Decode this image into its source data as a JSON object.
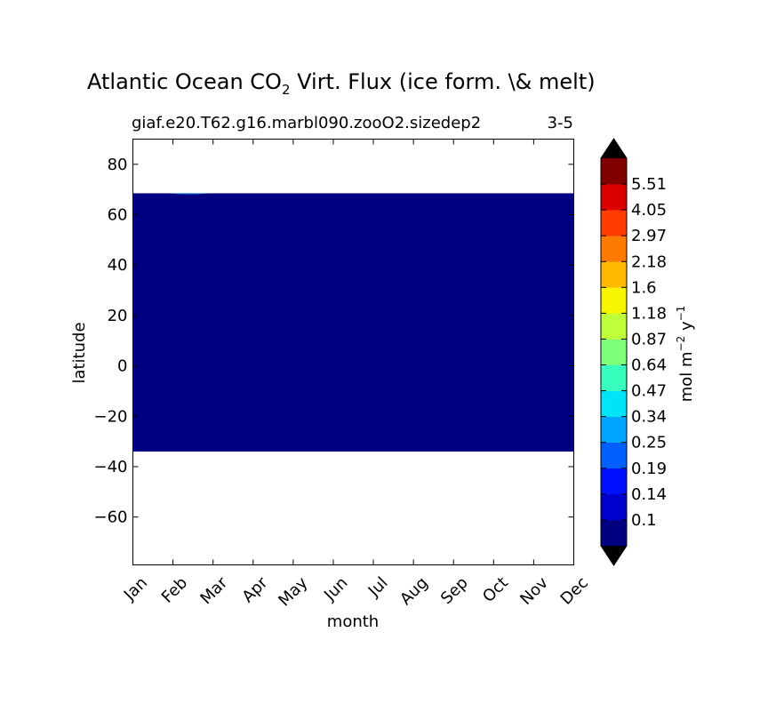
{
  "title": "Atlantic Ocean CO",
  "title_sub": "2",
  "title_rest": " Virt. Flux (ice form. \\& melt)",
  "subtitle_left": "giaf.e20.T62.g16.marbl090.zooO2.sizedep2",
  "subtitle_right": "3-5",
  "colorbar_label": {
    "base": "mol m",
    "exp1": "−2",
    "mid": " y",
    "exp2": "−1"
  },
  "chart_data": {
    "type": "heatmap",
    "title": "Atlantic Ocean CO2 Virt. Flux (ice form. \\& melt)",
    "xlabel": "month",
    "ylabel": "latitude",
    "x_categories": [
      "Jan",
      "Feb",
      "Mar",
      "Apr",
      "May",
      "Jun",
      "Jul",
      "Aug",
      "Sep",
      "Oct",
      "Nov",
      "Dec"
    ],
    "ylim": [
      -79,
      90
    ],
    "y_ticks": [
      80,
      60,
      40,
      20,
      0,
      -20,
      -40,
      -60
    ],
    "y_tick_labels": [
      "80",
      "60",
      "40",
      "20",
      "0",
      "−20",
      "−40",
      "−60"
    ],
    "filled_region": {
      "lat_min": -34,
      "lat_max": 68.5,
      "month_start": "Jan",
      "month_end": "Dec",
      "level": "below 0.1"
    },
    "colorbar": {
      "levels": [
        "0.1",
        "0.14",
        "0.19",
        "0.25",
        "0.34",
        "0.47",
        "0.64",
        "0.87",
        "1.18",
        "1.6",
        "2.18",
        "2.97",
        "4.05",
        "5.51"
      ],
      "colors": [
        "#000080",
        "#0000cd",
        "#0010ff",
        "#0060ff",
        "#00a4ff",
        "#00e4f8",
        "#39ffbe",
        "#7dff7a",
        "#beff39",
        "#f8f500",
        "#ffb900",
        "#ff7a00",
        "#ff3b00",
        "#db0000",
        "#800000"
      ],
      "extend": "both",
      "extend_color": "#000000"
    },
    "grid": false,
    "legend": "colorbar-right"
  }
}
